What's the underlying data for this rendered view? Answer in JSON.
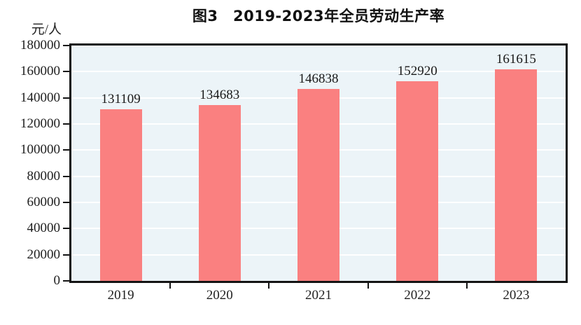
{
  "page": {
    "background": "#ffffff"
  },
  "chart_data": {
    "type": "bar",
    "title": "图3　2019-2023年全员劳动生产率",
    "unit_label": "元/人",
    "categories": [
      "2019",
      "2020",
      "2021",
      "2022",
      "2023"
    ],
    "values": [
      131109,
      134683,
      146838,
      152920,
      161615
    ],
    "value_labels": [
      "131109",
      "134683",
      "146838",
      "152920",
      "161615"
    ],
    "xlabel": "",
    "ylabel": "元/人",
    "ylim": [
      0,
      180000
    ],
    "ytick_step": 20000,
    "yticks": [
      0,
      20000,
      40000,
      60000,
      80000,
      100000,
      120000,
      140000,
      160000,
      180000
    ],
    "grid": true,
    "legend": "none",
    "colors": {
      "bar": "#FA8080",
      "plot_background": "#ECF4F8",
      "grid_line": "#FFFFFF",
      "axis_frame": "#141414",
      "text": "#1A1A1A"
    }
  }
}
